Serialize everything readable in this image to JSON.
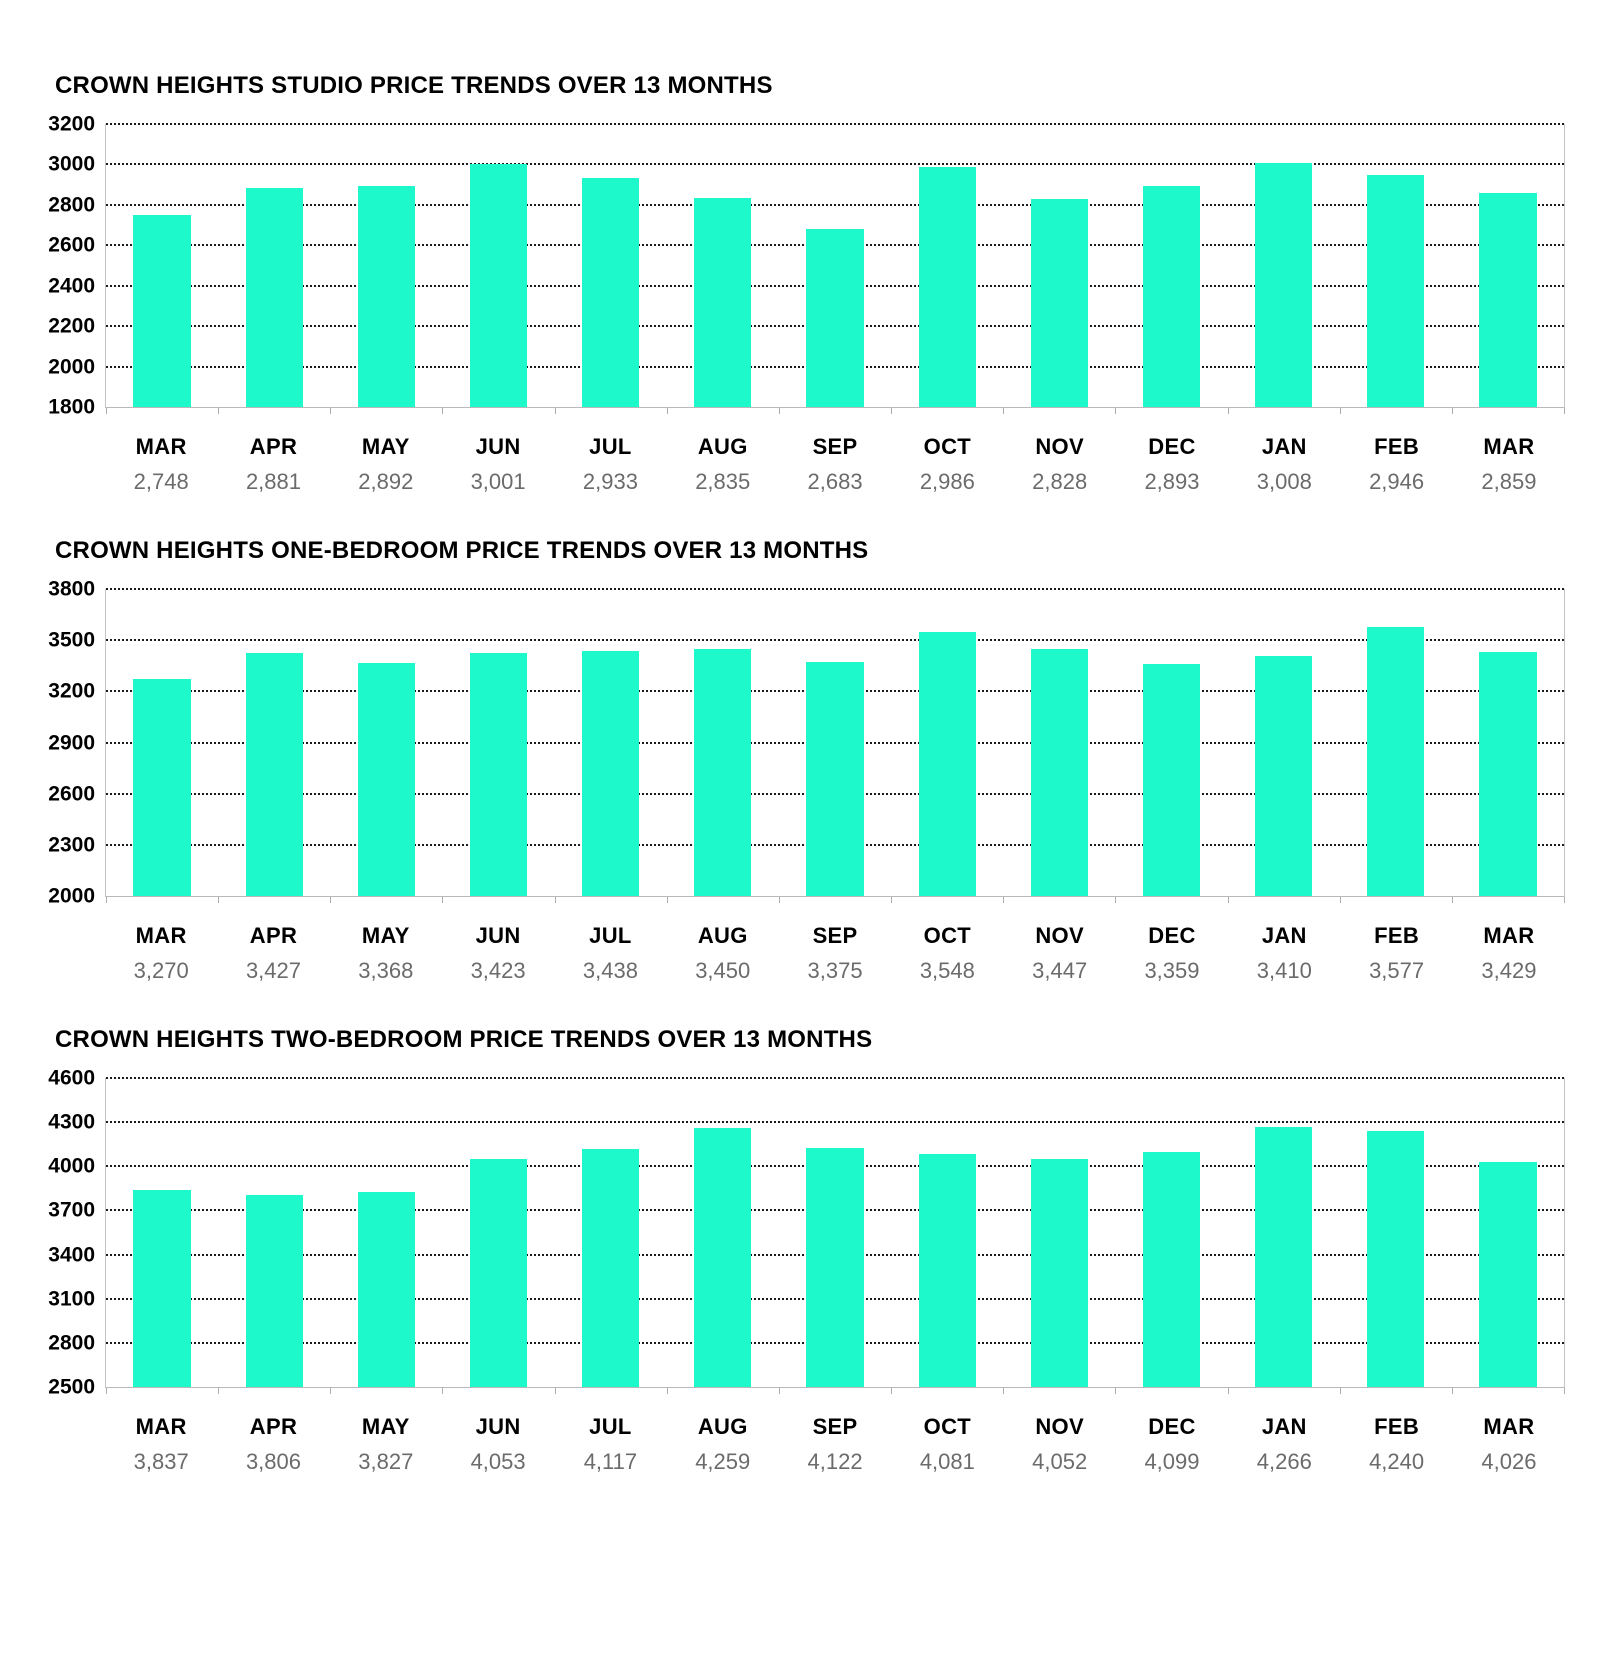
{
  "page": {
    "background": "#ffffff"
  },
  "colors": {
    "bar": "#1ef9cb",
    "title_text": "#000000",
    "axis_tick_text": "#000000",
    "month_text": "#000000",
    "value_label": "#6b6b6b",
    "gridline": "#1a1a1a",
    "axis_line": "#bdbdbd"
  },
  "chart_data": [
    {
      "type": "bar",
      "title": "CROWN HEIGHTS STUDIO PRICE TRENDS OVER 13 MONTHS",
      "categories": [
        "MAR",
        "APR",
        "MAY",
        "JUN",
        "JUL",
        "AUG",
        "SEP",
        "OCT",
        "NOV",
        "DEC",
        "JAN",
        "FEB",
        "MAR"
      ],
      "values": [
        2748,
        2881,
        2892,
        3001,
        2933,
        2835,
        2683,
        2986,
        2828,
        2893,
        3008,
        2946,
        2859
      ],
      "value_labels": [
        "2,748",
        "2,881",
        "2,892",
        "3,001",
        "2,933",
        "2,835",
        "2,683",
        "2,986",
        "2,828",
        "2,893",
        "3,008",
        "2,946",
        "2,859"
      ],
      "xlabel": "",
      "ylabel": "",
      "ylim": [
        1800,
        3200
      ],
      "ytick_step": 200,
      "yticks": [
        3200,
        3000,
        2800,
        2600,
        2400,
        2200,
        2000,
        1800
      ],
      "grid": "horizontal-dotted",
      "legend": "none"
    },
    {
      "type": "bar",
      "title": "CROWN HEIGHTS ONE-BEDROOM PRICE TRENDS OVER 13 MONTHS",
      "categories": [
        "MAR",
        "APR",
        "MAY",
        "JUN",
        "JUL",
        "AUG",
        "SEP",
        "OCT",
        "NOV",
        "DEC",
        "JAN",
        "FEB",
        "MAR"
      ],
      "values": [
        3270,
        3427,
        3368,
        3423,
        3438,
        3450,
        3375,
        3548,
        3447,
        3359,
        3410,
        3577,
        3429
      ],
      "value_labels": [
        "3,270",
        "3,427",
        "3,368",
        "3,423",
        "3,438",
        "3,450",
        "3,375",
        "3,548",
        "3,447",
        "3,359",
        "3,410",
        "3,577",
        "3,429"
      ],
      "xlabel": "",
      "ylabel": "",
      "ylim": [
        2000,
        3800
      ],
      "ytick_step": 300,
      "yticks": [
        3800,
        3500,
        3200,
        2900,
        2600,
        2300,
        2000
      ],
      "grid": "horizontal-dotted",
      "legend": "none"
    },
    {
      "type": "bar",
      "title": "CROWN HEIGHTS TWO-BEDROOM PRICE TRENDS OVER 13 MONTHS",
      "categories": [
        "MAR",
        "APR",
        "MAY",
        "JUN",
        "JUL",
        "AUG",
        "SEP",
        "OCT",
        "NOV",
        "DEC",
        "JAN",
        "FEB",
        "MAR"
      ],
      "values": [
        3837,
        3806,
        3827,
        4053,
        4117,
        4259,
        4122,
        4081,
        4052,
        4099,
        4266,
        4240,
        4026
      ],
      "value_labels": [
        "3,837",
        "3,806",
        "3,827",
        "4,053",
        "4,117",
        "4,259",
        "4,122",
        "4,081",
        "4,052",
        "4,099",
        "4,266",
        "4,240",
        "4,026"
      ],
      "xlabel": "",
      "ylabel": "",
      "ylim": [
        2500,
        4600
      ],
      "ytick_step": 300,
      "yticks": [
        4600,
        4300,
        4000,
        3700,
        3400,
        3100,
        2800,
        2500
      ],
      "grid": "horizontal-dotted",
      "legend": "none"
    }
  ]
}
